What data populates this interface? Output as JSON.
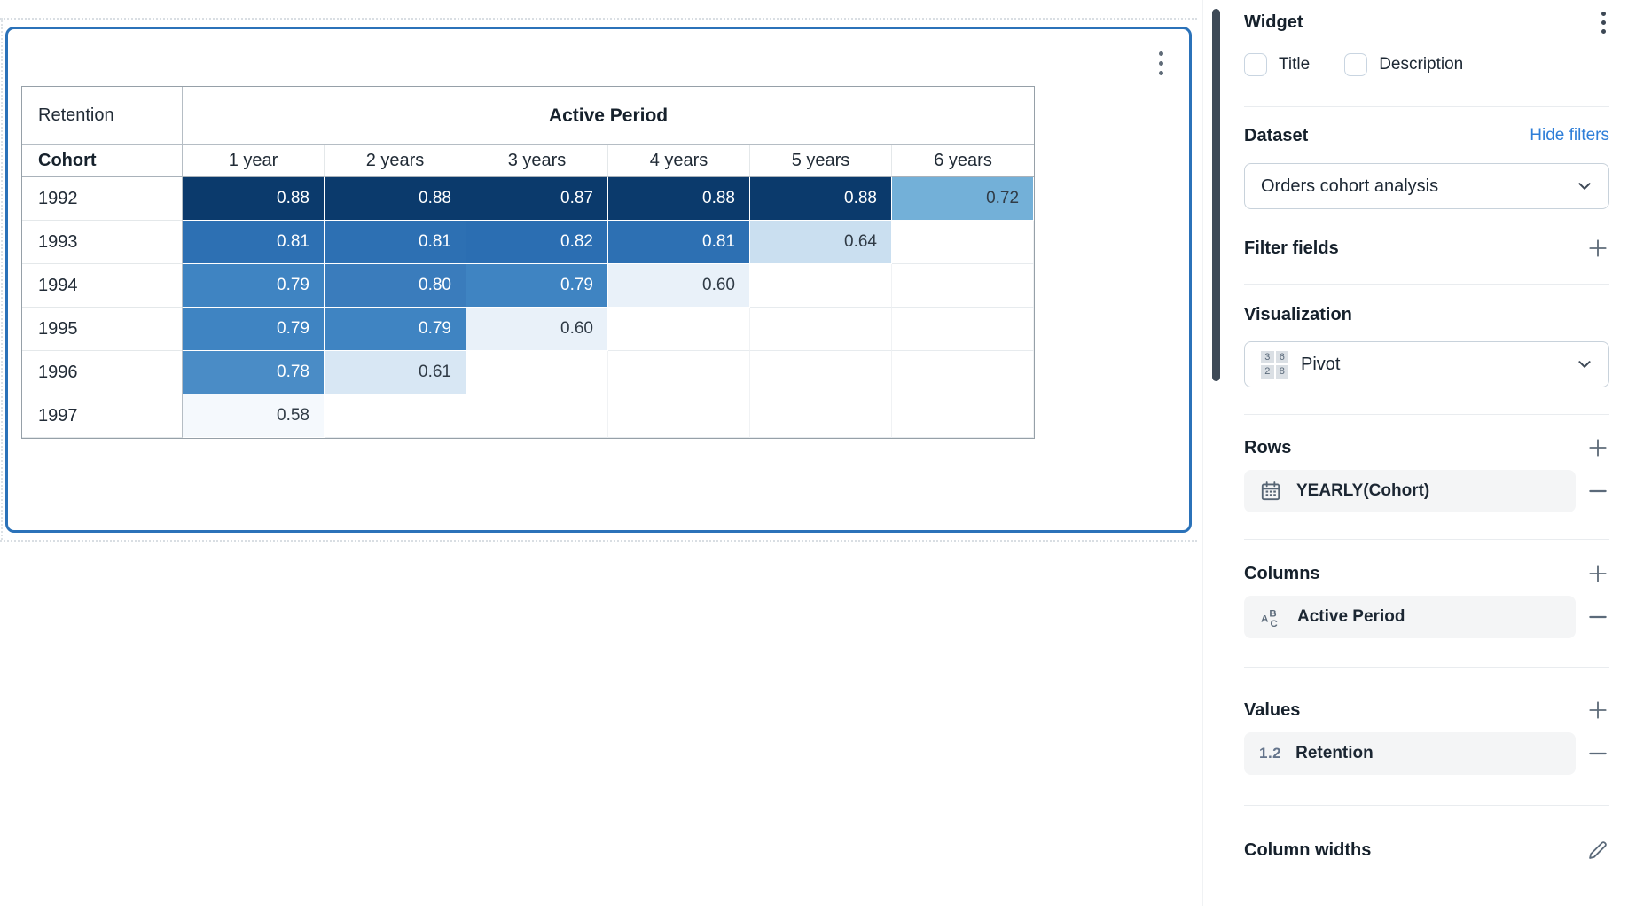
{
  "colors": {
    "widget_selection_border": "#2b72b9",
    "link_blue": "#2e7ed8",
    "panel_scroll_thumb": "#3e4a57",
    "heatmap_dark": "#0b3a6c",
    "heatmap_light_text": "#303b46"
  },
  "canvas": {
    "widget_menu_icon": "kebab-menu"
  },
  "chart_data": {
    "type": "heatmap",
    "title": "Retention",
    "column_group": "Active Period",
    "row_dimension": "Cohort",
    "categories": [
      "1 year",
      "2 years",
      "3 years",
      "4 years",
      "5 years",
      "6 years"
    ],
    "rows": [
      {
        "cohort": "1992",
        "cells": [
          {
            "v": "0.88",
            "bg": "#0b3a6c",
            "fg": "#ffffff"
          },
          {
            "v": "0.88",
            "bg": "#0b3a6c",
            "fg": "#ffffff"
          },
          {
            "v": "0.87",
            "bg": "#0b3a6c",
            "fg": "#ffffff"
          },
          {
            "v": "0.88",
            "bg": "#0b3a6c",
            "fg": "#ffffff"
          },
          {
            "v": "0.88",
            "bg": "#0b3a6c",
            "fg": "#ffffff"
          },
          {
            "v": "0.72",
            "bg": "#73b0d8",
            "fg": "#303b46"
          }
        ]
      },
      {
        "cohort": "1993",
        "cells": [
          {
            "v": "0.81",
            "bg": "#2d70b3",
            "fg": "#ffffff"
          },
          {
            "v": "0.81",
            "bg": "#2d70b3",
            "fg": "#ffffff"
          },
          {
            "v": "0.82",
            "bg": "#2b6eb2",
            "fg": "#ffffff"
          },
          {
            "v": "0.81",
            "bg": "#2d70b3",
            "fg": "#ffffff"
          },
          {
            "v": "0.64",
            "bg": "#cadff0",
            "fg": "#303b46"
          },
          null
        ]
      },
      {
        "cohort": "1994",
        "cells": [
          {
            "v": "0.79",
            "bg": "#3f84c2",
            "fg": "#ffffff"
          },
          {
            "v": "0.80",
            "bg": "#3a7cbc",
            "fg": "#ffffff"
          },
          {
            "v": "0.79",
            "bg": "#3f84c2",
            "fg": "#ffffff"
          },
          {
            "v": "0.60",
            "bg": "#e9f1f9",
            "fg": "#303b46"
          },
          null,
          null
        ]
      },
      {
        "cohort": "1995",
        "cells": [
          {
            "v": "0.79",
            "bg": "#3f84c2",
            "fg": "#ffffff"
          },
          {
            "v": "0.79",
            "bg": "#3f84c2",
            "fg": "#ffffff"
          },
          {
            "v": "0.60",
            "bg": "#e9f1f9",
            "fg": "#303b46"
          },
          null,
          null,
          null
        ]
      },
      {
        "cohort": "1996",
        "cells": [
          {
            "v": "0.78",
            "bg": "#4a8cc6",
            "fg": "#ffffff"
          },
          {
            "v": "0.61",
            "bg": "#d8e7f4",
            "fg": "#303b46"
          },
          null,
          null,
          null,
          null
        ]
      },
      {
        "cohort": "1997",
        "cells": [
          {
            "v": "0.58",
            "bg": "#f5f9fd",
            "fg": "#303b46"
          },
          null,
          null,
          null,
          null,
          null
        ]
      }
    ]
  },
  "panel": {
    "title": "Widget",
    "menu_icon": "kebab-menu",
    "checkboxes": [
      {
        "label": "Title",
        "checked": false
      },
      {
        "label": "Description",
        "checked": false
      }
    ],
    "dataset": {
      "heading": "Dataset",
      "link": "Hide filters",
      "selected": "Orders cohort analysis"
    },
    "filter_fields": {
      "heading": "Filter fields",
      "action_icon": "plus-icon"
    },
    "visualization": {
      "heading": "Visualization",
      "selected": "Pivot",
      "icon_digits": [
        "3",
        "6",
        "2",
        "8"
      ]
    },
    "rows_section": {
      "heading": "Rows",
      "action_icon": "plus-icon",
      "items": [
        {
          "label": "YEARLY(Cohort)",
          "icon": "calendar-icon",
          "remove_icon": "minus-icon"
        }
      ]
    },
    "columns_section": {
      "heading": "Columns",
      "action_icon": "plus-icon",
      "items": [
        {
          "label": "Active Period",
          "icon": "abc-text-icon",
          "remove_icon": "minus-icon"
        }
      ]
    },
    "values_section": {
      "heading": "Values",
      "action_icon": "plus-icon",
      "items": [
        {
          "label": "Retention",
          "icon": "numeric-12-icon",
          "icon_text": "1.2",
          "remove_icon": "minus-icon"
        }
      ]
    },
    "column_widths": {
      "heading": "Column widths",
      "action_icon": "pencil-icon"
    }
  }
}
